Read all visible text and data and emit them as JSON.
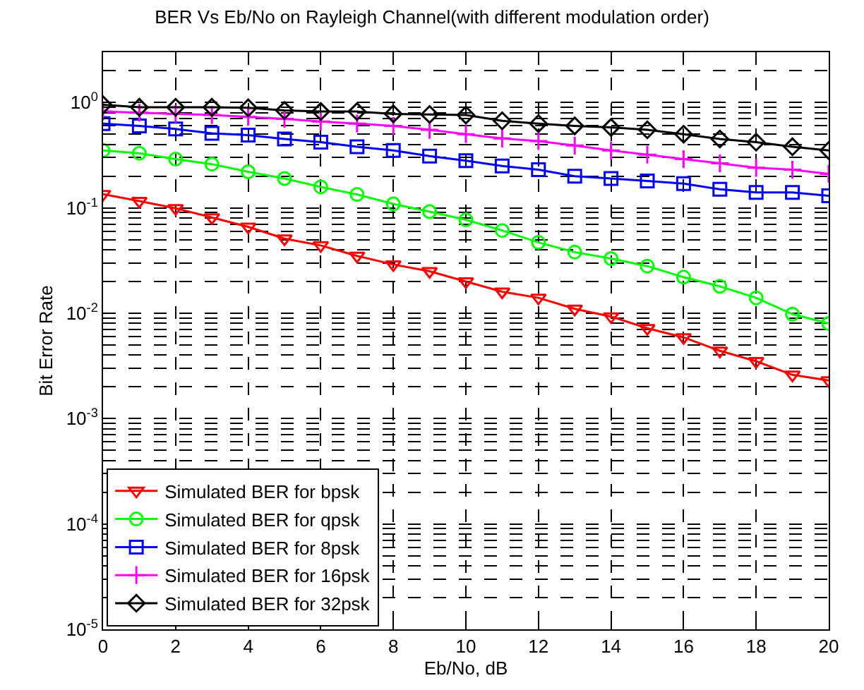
{
  "chart_data": {
    "type": "line",
    "title": "BER Vs Eb/No on Rayleigh Channel(with different modulation order)",
    "xlabel": "Eb/No, dB",
    "ylabel": "Bit Error Rate",
    "x": [
      0,
      1,
      2,
      3,
      4,
      5,
      6,
      7,
      8,
      9,
      10,
      11,
      12,
      13,
      14,
      15,
      16,
      17,
      18,
      19,
      20
    ],
    "series": [
      {
        "name": "Simulated BER for bpsk",
        "color": "#ff0000",
        "marker": "triangle",
        "values": [
          0.135,
          0.116,
          0.099,
          0.081,
          0.066,
          0.051,
          0.044,
          0.035,
          0.029,
          0.025,
          0.02,
          0.016,
          0.014,
          0.011,
          0.0093,
          0.0072,
          0.0059,
          0.0044,
          0.0035,
          0.0026,
          0.0023
        ]
      },
      {
        "name": "Simulated BER for qpsk",
        "color": "#00ff00",
        "marker": "circle",
        "values": [
          0.35,
          0.33,
          0.29,
          0.26,
          0.22,
          0.19,
          0.158,
          0.134,
          0.109,
          0.092,
          0.077,
          0.061,
          0.047,
          0.038,
          0.033,
          0.028,
          0.022,
          0.018,
          0.014,
          0.0098,
          0.008
        ]
      },
      {
        "name": "Simulated BER for 8psk",
        "color": "#0000ff",
        "marker": "square",
        "values": [
          0.63,
          0.6,
          0.56,
          0.51,
          0.49,
          0.45,
          0.42,
          0.38,
          0.35,
          0.31,
          0.28,
          0.25,
          0.23,
          0.2,
          0.19,
          0.18,
          0.17,
          0.15,
          0.14,
          0.14,
          0.13
        ]
      },
      {
        "name": "Simulated BER for 16psk",
        "color": "#ff00ff",
        "marker": "cross",
        "values": [
          0.82,
          0.8,
          0.78,
          0.76,
          0.73,
          0.7,
          0.66,
          0.63,
          0.6,
          0.55,
          0.5,
          0.455,
          0.43,
          0.39,
          0.35,
          0.32,
          0.29,
          0.265,
          0.24,
          0.23,
          0.21
        ]
      },
      {
        "name": "Simulated BER for 32psk",
        "color": "#000000",
        "marker": "diamond",
        "values": [
          0.95,
          0.9,
          0.9,
          0.9,
          0.89,
          0.84,
          0.82,
          0.82,
          0.78,
          0.77,
          0.76,
          0.67,
          0.63,
          0.6,
          0.58,
          0.55,
          0.5,
          0.45,
          0.42,
          0.38,
          0.35
        ]
      }
    ],
    "xlim": [
      0,
      20
    ],
    "xticks": [
      0,
      2,
      4,
      6,
      8,
      10,
      12,
      14,
      16,
      18,
      20
    ],
    "log": "y",
    "ylim": [
      1e-05,
      3
    ],
    "yticks": [
      {
        "value": 1e-05,
        "label": "10$^{-5}$"
      },
      {
        "value": 0.0001,
        "label": "10$^{-4}$"
      },
      {
        "value": 0.001,
        "label": "10$^{-3}$"
      },
      {
        "value": 0.01,
        "label": "10$^{-2}$"
      },
      {
        "value": 0.1,
        "label": "10$^{-1}$"
      },
      {
        "value": 1,
        "label": "10$^{0}$"
      }
    ],
    "grid": true,
    "legend": "bottom left",
    "line_style": "solid"
  }
}
